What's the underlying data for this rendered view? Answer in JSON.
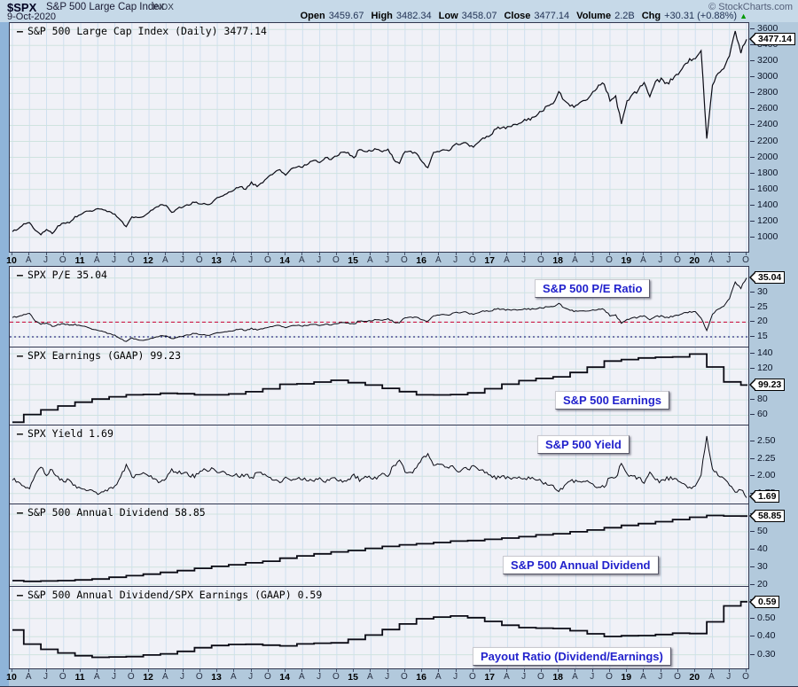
{
  "header": {
    "symbol": "$SPX",
    "name": "S&P 500 Large Cap Index",
    "exchange": "INDX",
    "date": "9-Oct-2020",
    "copyright": "© StockCharts.com",
    "quote": [
      {
        "label": "Open",
        "value": "3459.67"
      },
      {
        "label": "High",
        "value": "3482.34"
      },
      {
        "label": "Low",
        "value": "3458.07"
      },
      {
        "label": "Close",
        "value": "3477.14"
      },
      {
        "label": "Volume",
        "value": "2.2B"
      },
      {
        "label": "Chg",
        "value": "+30.31 (+0.88%)"
      }
    ],
    "change_direction": "up"
  },
  "colors": {
    "accent_blue": "#2222cc",
    "ref_red": "#cc0033",
    "ref_navy": "#000066",
    "up_green": "#009900",
    "series_line": "#0a0a14"
  },
  "x_axis": {
    "range": "Jan 2010 - Oct 2020",
    "labels": [
      "10",
      "A",
      "J",
      "O",
      "11",
      "A",
      "J",
      "O",
      "12",
      "A",
      "J",
      "O",
      "13",
      "A",
      "J",
      "O",
      "14",
      "A",
      "J",
      "O",
      "15",
      "A",
      "J",
      "O",
      "16",
      "A",
      "J",
      "O",
      "17",
      "A",
      "J",
      "O",
      "18",
      "A",
      "J",
      "O",
      "19",
      "A",
      "J",
      "O",
      "20",
      "A",
      "J",
      "O"
    ]
  },
  "chart_data": [
    {
      "id": "price",
      "type": "line",
      "title": "S&P 500 Large Cap Index (Daily)",
      "legend": "S&P 500 Large Cap Index (Daily) 3477.14",
      "annotation": null,
      "frequency": "monthly",
      "last": 3477.14,
      "last_label": "3477.14",
      "ylim": [
        820,
        3680
      ],
      "ytick_values": [
        1000,
        1200,
        1400,
        1600,
        1800,
        2000,
        2200,
        2400,
        2600,
        2800,
        3000,
        3200,
        3400,
        3600
      ],
      "ytick_labels": [
        "1000",
        "1200",
        "1400",
        "1600",
        "1800",
        "2000",
        "2200",
        "2400",
        "2600",
        "2800",
        "3000",
        "3200",
        "3400",
        "3600"
      ],
      "values": [
        1074,
        1104,
        1169,
        1187,
        1089,
        1031,
        1102,
        1049,
        1141,
        1183,
        1181,
        1258,
        1286,
        1327,
        1326,
        1364,
        1345,
        1321,
        1292,
        1219,
        1131,
        1253,
        1247,
        1258,
        1312,
        1366,
        1408,
        1398,
        1310,
        1362,
        1379,
        1407,
        1441,
        1412,
        1416,
        1426,
        1498,
        1515,
        1569,
        1598,
        1631,
        1606,
        1686,
        1633,
        1682,
        1757,
        1806,
        1848,
        1783,
        1859,
        1872,
        1884,
        1924,
        1960,
        1931,
        2003,
        1972,
        2018,
        2068,
        2059,
        1995,
        2105,
        2068,
        2086,
        2107,
        2063,
        2104,
        1972,
        1920,
        2079,
        2080,
        2044,
        1940,
        1870,
        2060,
        2065,
        2097,
        2099,
        2174,
        2171,
        2168,
        2126,
        2199,
        2239,
        2279,
        2364,
        2363,
        2384,
        2412,
        2423,
        2470,
        2472,
        2519,
        2575,
        2648,
        2674,
        2824,
        2714,
        2641,
        2648,
        2705,
        2718,
        2816,
        2902,
        2914,
        2712,
        2760,
        2416,
        2704,
        2784,
        2834,
        2946,
        2752,
        2942,
        2980,
        2926,
        2977,
        3038,
        3141,
        3231,
        3226,
        3340,
        2237,
        2912,
        3044,
        3100,
        3271,
        3570,
        3310,
        3477
      ]
    },
    {
      "id": "pe",
      "type": "line",
      "title": "S&P 500 P/E Ratio",
      "legend": "SPX P/E 35.04",
      "annotation": "S&P 500 P/E Ratio",
      "frequency": "monthly",
      "last": 35.04,
      "last_label": "35.04",
      "ylim": [
        12.0,
        38.8
      ],
      "ytick_values": [
        15,
        20,
        25,
        30,
        35
      ],
      "ytick_labels": [
        "15",
        "20",
        "25",
        "30",
        "35"
      ],
      "ref_lines": [
        {
          "value": 20,
          "color": "#cc0033",
          "dash": "4 3"
        },
        {
          "value": 15,
          "color": "#000066",
          "dash": "2 3"
        }
      ],
      "values": [
        21.6,
        21.9,
        22.6,
        23.1,
        20.4,
        19.2,
        19.8,
        18.6,
        19.2,
        19.5,
        19.0,
        19.3,
        18.8,
        18.4,
        17.6,
        17.3,
        16.8,
        16.1,
        15.6,
        14.4,
        13.4,
        14.6,
        14.0,
        13.8,
        14.2,
        14.8,
        15.4,
        15.3,
        14.4,
        14.9,
        15.2,
        15.7,
        16.2,
        15.7,
        15.6,
        15.8,
        16.4,
        16.5,
        17.0,
        17.2,
        17.6,
        17.2,
        17.9,
        17.3,
        17.7,
        18.2,
        18.7,
        18.9,
        18.2,
        18.8,
        18.8,
        18.7,
        19.0,
        19.2,
        18.8,
        19.4,
        19.0,
        19.5,
        19.9,
        19.7,
        19.4,
        20.5,
        20.2,
        20.5,
        20.9,
        20.5,
        21.2,
        20.0,
        19.7,
        21.6,
        21.8,
        21.6,
        20.7,
        20.3,
        22.1,
        22.3,
        22.6,
        22.6,
        23.4,
        23.3,
        23.2,
        22.6,
        23.3,
        23.7,
        23.8,
        24.5,
        24.3,
        24.3,
        24.3,
        24.2,
        24.5,
        24.3,
        24.5,
        24.8,
        25.3,
        25.3,
        26.4,
        24.9,
        24.0,
        23.8,
        23.9,
        23.7,
        24.1,
        24.4,
        24.2,
        22.2,
        22.4,
        19.6,
        20.9,
        21.4,
        21.6,
        22.3,
        20.7,
        21.9,
        22.1,
        21.6,
        21.9,
        22.3,
        23.1,
        23.6,
        23.5,
        21.4,
        17.2,
        22.8,
        24.3,
        25.3,
        28.0,
        33.5,
        31.5,
        35.04
      ]
    },
    {
      "id": "earnings",
      "type": "step",
      "title": "S&P 500 Earnings",
      "legend": "SPX Earnings (GAAP) 99.23",
      "annotation": "S&P 500 Earnings",
      "frequency": "quarterly",
      "last": 99.23,
      "last_label": "99.23",
      "ylim": [
        49,
        148
      ],
      "ytick_values": [
        60,
        80,
        100,
        120,
        140
      ],
      "ytick_labels": [
        "60",
        "80",
        "100",
        "120",
        "140"
      ],
      "values": [
        51,
        61,
        67,
        72,
        77,
        81,
        84,
        86.5,
        87,
        88.5,
        87.9,
        86.5,
        86.5,
        87.7,
        90.5,
        94.4,
        100.2,
        100.8,
        103.1,
        105.4,
        102.3,
        99.2,
        94.9,
        90.7,
        86.5,
        86.4,
        86.9,
        89.1,
        94.5,
        100.3,
        104.9,
        107.8,
        109.9,
        115.5,
        122.5,
        130.4,
        132.4,
        134.4,
        135.3,
        135.8,
        139.5,
        122.7,
        103.3,
        99.23
      ]
    },
    {
      "id": "yield",
      "type": "line",
      "title": "S&P 500 Yield",
      "legend": "SPX Yield 1.69",
      "annotation": "S&P 500 Yield",
      "frequency": "monthly",
      "last": 1.69,
      "last_label": "1.69",
      "ylim": [
        1.62,
        2.73
      ],
      "ytick_values": [
        1.75,
        2.0,
        2.25,
        2.5
      ],
      "ytick_labels": [
        "1.75",
        "2.00",
        "2.25",
        "2.50"
      ],
      "values": [
        1.95,
        1.92,
        1.86,
        1.83,
        2.02,
        2.12,
        2.02,
        2.1,
        1.99,
        1.93,
        1.95,
        1.87,
        1.83,
        1.79,
        1.8,
        1.75,
        1.78,
        1.82,
        1.86,
        2.0,
        2.16,
        1.98,
        2.02,
        2.05,
        2.0,
        1.96,
        1.92,
        1.96,
        2.1,
        2.05,
        2.04,
        2.02,
        1.99,
        2.06,
        2.09,
        2.12,
        2.05,
        2.06,
        2.03,
        2.02,
        1.98,
        2.04,
        1.97,
        2.05,
        2.02,
        1.98,
        1.94,
        1.91,
        2.0,
        1.94,
        1.95,
        1.96,
        1.94,
        1.92,
        1.97,
        1.92,
        1.97,
        1.95,
        1.92,
        1.95,
        2.03,
        1.94,
        1.99,
        1.98,
        1.97,
        2.03,
        2.0,
        2.15,
        2.22,
        2.07,
        2.06,
        2.11,
        2.25,
        2.32,
        2.15,
        2.16,
        2.14,
        2.15,
        2.08,
        2.09,
        2.1,
        2.15,
        2.09,
        2.05,
        2.02,
        1.97,
        1.99,
        1.99,
        1.98,
        1.99,
        1.96,
        1.97,
        1.95,
        1.92,
        1.88,
        1.87,
        1.78,
        1.87,
        1.93,
        1.94,
        1.92,
        1.93,
        1.88,
        1.84,
        1.84,
        1.99,
        1.97,
        2.18,
        2.03,
        1.99,
        1.97,
        1.91,
        2.05,
        1.94,
        1.93,
        1.98,
        1.96,
        1.93,
        1.88,
        1.84,
        1.85,
        2.02,
        2.58,
        2.12,
        2.0,
        1.96,
        1.87,
        1.76,
        1.81,
        1.69
      ]
    },
    {
      "id": "dividend",
      "type": "step",
      "title": "S&P 500 Annual Dividend",
      "legend": "S&P 500 Annual Dividend 58.85",
      "annotation": "S&P 500 Annual Dividend",
      "frequency": "quarterly",
      "last": 58.85,
      "last_label": "58.85",
      "ylim": [
        19.8,
        65.5
      ],
      "ytick_values": [
        20,
        30,
        40,
        50,
        60
      ],
      "ytick_labels": [
        "20",
        "30",
        "40",
        "50",
        "60"
      ],
      "values": [
        22.3,
        21.9,
        22.1,
        22.3,
        22.7,
        23.2,
        24.2,
        25.1,
        26.0,
        27.0,
        28.0,
        29.3,
        30.4,
        31.3,
        32.4,
        33.3,
        35.0,
        36.3,
        37.5,
        38.6,
        39.4,
        40.6,
        41.7,
        42.6,
        43.2,
        43.9,
        44.7,
        45.0,
        45.7,
        46.4,
        47.2,
        48.2,
        48.9,
        50.0,
        51.0,
        52.3,
        53.6,
        54.6,
        55.7,
        56.9,
        58.2,
        59.2,
        58.9,
        58.85
      ]
    },
    {
      "id": "payout",
      "type": "step",
      "title": "Payout Ratio (Dividend/Earnings)",
      "legend": "S&P 500 Annual Dividend/SPX Earnings (GAAP) 0.59",
      "annotation": "Payout Ratio (Dividend/Earnings)",
      "frequency": "quarterly",
      "last": 0.59,
      "last_label": "0.59",
      "ylim": [
        0.225,
        0.675
      ],
      "ytick_values": [
        0.3,
        0.4,
        0.5,
        0.6
      ],
      "ytick_labels": [
        "0.30",
        "0.40",
        "0.50",
        "0.60"
      ],
      "values": [
        0.437,
        0.359,
        0.33,
        0.31,
        0.295,
        0.286,
        0.288,
        0.29,
        0.299,
        0.305,
        0.319,
        0.339,
        0.351,
        0.357,
        0.358,
        0.353,
        0.349,
        0.36,
        0.364,
        0.366,
        0.385,
        0.409,
        0.439,
        0.47,
        0.499,
        0.508,
        0.514,
        0.505,
        0.484,
        0.463,
        0.45,
        0.447,
        0.445,
        0.433,
        0.416,
        0.401,
        0.405,
        0.406,
        0.412,
        0.419,
        0.417,
        0.482,
        0.57,
        0.593
      ]
    }
  ]
}
